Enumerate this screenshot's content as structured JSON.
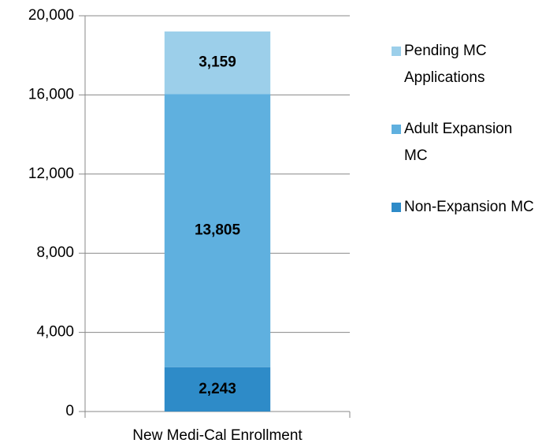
{
  "chart_data": {
    "type": "stacked_bar",
    "categories": [
      "New Medi-Cal Enrollment"
    ],
    "series": [
      {
        "name": "Non-Expansion MC",
        "color": "#2e8bc8",
        "values": [
          2243
        ],
        "value_labels": [
          "2,243"
        ]
      },
      {
        "name": "Adult Expansion MC",
        "color": "#5fb0df",
        "values": [
          13805
        ],
        "value_labels": [
          "13,805"
        ]
      },
      {
        "name": "Pending MC Applications",
        "color": "#9ccfea",
        "values": [
          3159
        ],
        "value_labels": [
          "3,159"
        ]
      }
    ],
    "ylim": [
      0,
      20000
    ],
    "yticks": [
      0,
      {
        "value": 4000,
        "label": "4,000"
      },
      {
        "value": 8000,
        "label": "8,000"
      },
      {
        "value": 12000,
        "label": "12,000"
      },
      {
        "value": 16000,
        "label": "16,000"
      },
      {
        "value": 20000,
        "label": "20,000"
      }
    ],
    "grid": true,
    "legend": "right"
  }
}
